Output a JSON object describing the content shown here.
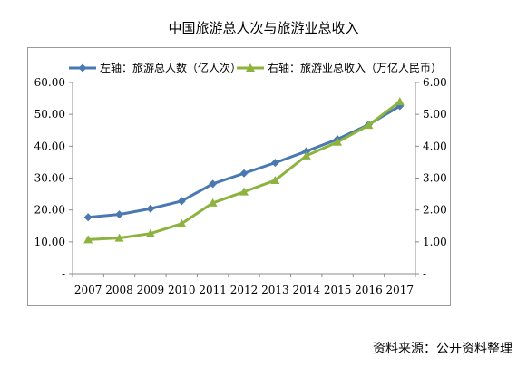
{
  "chart_data": {
    "type": "line",
    "title": "中国旅游总人次与旅游业总收入",
    "categories": [
      "2007",
      "2008",
      "2009",
      "2010",
      "2011",
      "2012",
      "2013",
      "2014",
      "2015",
      "2016",
      "2017"
    ],
    "series": [
      {
        "name": "左轴：旅游总人数（亿人次）",
        "axis": "left",
        "color": "#4a78b0",
        "marker": "diamond",
        "values": [
          17.7,
          18.6,
          20.4,
          22.8,
          28.2,
          31.5,
          34.8,
          38.4,
          42.2,
          46.8,
          52.6
        ]
      },
      {
        "name": "右轴：旅游业总收入（万亿人民币）",
        "axis": "right",
        "color": "#8db33f",
        "marker": "triangle",
        "values": [
          1.07,
          1.12,
          1.26,
          1.57,
          2.22,
          2.57,
          2.93,
          3.7,
          4.13,
          4.66,
          5.4
        ]
      }
    ],
    "left_axis": {
      "range": [
        0,
        60
      ],
      "ticks": [
        "-",
        "10.00",
        "20.00",
        "30.00",
        "40.00",
        "50.00",
        "60.00"
      ]
    },
    "right_axis": {
      "range": [
        0,
        6
      ],
      "ticks": [
        "-",
        "1.00",
        "2.00",
        "3.00",
        "4.00",
        "5.00",
        "6.00"
      ]
    },
    "grid": false,
    "legend_position": "top"
  },
  "source": "资料来源：公开资料整理"
}
